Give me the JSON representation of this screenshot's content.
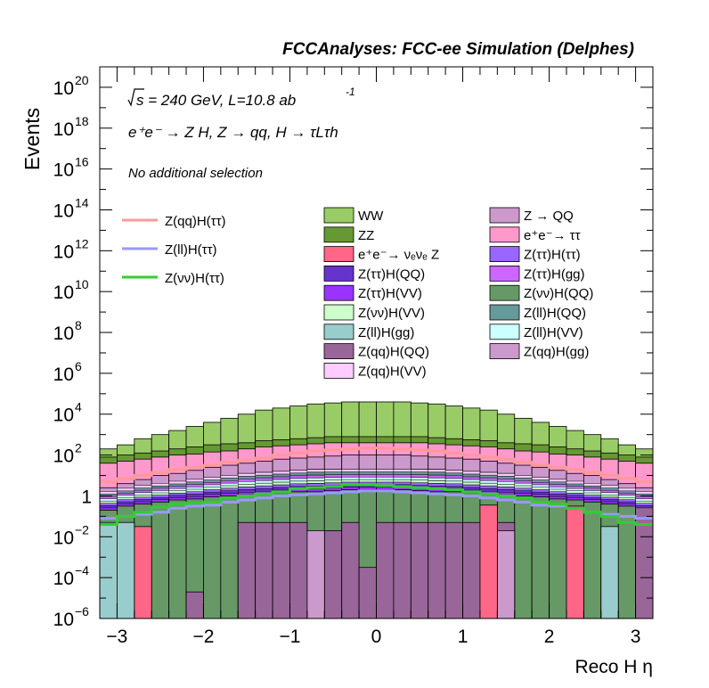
{
  "chart_data": {
    "type": "bar",
    "stacked": true,
    "histogram": true,
    "title": "FCCAnalyses: FCC-ee Simulation (Delphes)",
    "xlabel": "Reco H η",
    "ylabel": "Events",
    "xlim": [
      -3.2,
      3.2
    ],
    "ylim": [
      1e-06,
      1e+21
    ],
    "log_y": true,
    "legend_position": "top",
    "bins": 32,
    "x_ticks": [
      "−3",
      "−2",
      "−1",
      "0",
      "1",
      "2",
      "3"
    ],
    "y_ticks": [
      {
        "value": 1e-06,
        "base": "10",
        "exp": "−6"
      },
      {
        "value": 0.0001,
        "base": "10",
        "exp": "−4"
      },
      {
        "value": 0.01,
        "base": "10",
        "exp": "−2"
      },
      {
        "value": 1,
        "base": "1",
        "exp": ""
      },
      {
        "value": 100.0,
        "base": "10",
        "exp": "2"
      },
      {
        "value": 10000.0,
        "base": "10",
        "exp": "4"
      },
      {
        "value": 1000000.0,
        "base": "10",
        "exp": "6"
      },
      {
        "value": 100000000.0,
        "base": "10",
        "exp": "8"
      },
      {
        "value": 10000000000.0,
        "base": "10",
        "exp": "10"
      },
      {
        "value": 1000000000000.0,
        "base": "10",
        "exp": "12"
      },
      {
        "value": 100000000000000.0,
        "base": "10",
        "exp": "14"
      },
      {
        "value": 1e+16,
        "base": "10",
        "exp": "16"
      },
      {
        "value": 1e+18,
        "base": "10",
        "exp": "18"
      },
      {
        "value": 1e+20,
        "base": "10",
        "exp": "20"
      }
    ],
    "annotations": {
      "energy": "s = 240 GeV, L=10.8 ab",
      "energy_sup": "-1",
      "process": "e⁺e⁻ → Z H, Z → qq, H → τLτh",
      "selection": "No additional selection"
    },
    "stack_boundaries_log10": {
      "WW_top": [
        2.3,
        2.5,
        2.8,
        3.0,
        3.2,
        3.4,
        3.6,
        3.8,
        4.0,
        4.2,
        4.3,
        4.4,
        4.5,
        4.55,
        4.6,
        4.6,
        4.6,
        4.6,
        4.55,
        4.5,
        4.4,
        4.3,
        4.2,
        4.0,
        3.8,
        3.6,
        3.4,
        3.2,
        3.0,
        2.8,
        2.5,
        2.3
      ],
      "ZZ_top": [
        1.9,
        2.0,
        2.1,
        2.2,
        2.3,
        2.4,
        2.5,
        2.55,
        2.6,
        2.7,
        2.75,
        2.8,
        2.85,
        2.9,
        2.9,
        2.9,
        2.9,
        2.9,
        2.9,
        2.85,
        2.8,
        2.75,
        2.7,
        2.6,
        2.55,
        2.5,
        2.4,
        2.3,
        2.2,
        2.1,
        2.0,
        1.9
      ],
      "mid_top": [
        1.6,
        1.7,
        1.8,
        1.9,
        2.0,
        2.05,
        2.15,
        2.2,
        2.3,
        2.4,
        2.45,
        2.5,
        2.55,
        2.6,
        2.6,
        2.6,
        2.6,
        2.6,
        2.6,
        2.55,
        2.5,
        2.45,
        2.4,
        2.3,
        2.2,
        2.15,
        2.05,
        2.0,
        1.9,
        1.8,
        1.7,
        1.6
      ],
      "Zqq_gg_top": [
        0.4,
        0.6,
        0.8,
        1.0,
        1.1,
        1.25,
        1.4,
        1.5,
        1.6,
        1.7,
        1.8,
        1.85,
        1.9,
        1.95,
        2.0,
        2.0,
        2.0,
        2.0,
        1.95,
        1.9,
        1.85,
        1.8,
        1.7,
        1.6,
        1.5,
        1.4,
        1.25,
        1.1,
        1.0,
        0.8,
        0.6,
        0.4
      ],
      "dense_top": [
        0.2,
        0.35,
        0.5,
        0.6,
        0.7,
        0.8,
        0.9,
        1.0,
        1.1,
        1.15,
        1.2,
        1.25,
        1.3,
        1.3,
        1.3,
        1.3,
        1.3,
        1.3,
        1.3,
        1.3,
        1.25,
        1.2,
        1.15,
        1.1,
        1.0,
        0.9,
        0.8,
        0.7,
        0.6,
        0.5,
        0.35,
        0.2
      ],
      "Zvv_QQ_top": [
        -0.7,
        -0.5,
        -0.4,
        -0.3,
        -0.2,
        -0.15,
        -0.05,
        0.0,
        0.05,
        0.1,
        0.15,
        0.2,
        0.2,
        0.25,
        0.3,
        0.3,
        0.3,
        0.3,
        0.25,
        0.2,
        0.2,
        0.15,
        0.1,
        0.05,
        0.0,
        -0.05,
        -0.15,
        -0.2,
        -0.3,
        -0.4,
        -0.5,
        -0.7
      ],
      "Zqq_QQ_top": [
        -6.5,
        -6.5,
        -6.5,
        -6.5,
        -6.5,
        -4.7,
        -6.5,
        -6.5,
        -1.3,
        -1.3,
        -1.3,
        -1.3,
        -6.5,
        -1.7,
        -1.3,
        -3.5,
        -1.3,
        -1.3,
        -1.3,
        -1.3,
        -1.3,
        -1.3,
        -1.3,
        -1.3,
        -6.5,
        -6.5,
        -6.5,
        -6.5,
        -6.5,
        -4.7,
        -6.5,
        -0.3
      ],
      "Zqq_gg_bar": [
        -6.5,
        -6.5,
        -6.5,
        -6.5,
        -6.5,
        -6.5,
        -6.5,
        -6.5,
        -6.5,
        -6.5,
        -6.5,
        -6.5,
        -1.7,
        -6.5,
        -6.5,
        -6.5,
        -6.5,
        -6.5,
        -6.5,
        -6.5,
        -6.5,
        -6.5,
        -6.5,
        -1.7,
        -6.5,
        -6.5,
        -6.5,
        -6.5,
        -6.5,
        -6.5,
        -6.5,
        -6.5
      ],
      "nunuZ_top": [
        -6.5,
        -6.5,
        -1.5,
        -6.5,
        -6.5,
        -6.5,
        -6.5,
        -6.5,
        -6.5,
        -6.5,
        -6.5,
        -6.5,
        -6.5,
        -6.5,
        -6.5,
        -6.5,
        -6.5,
        -6.5,
        -6.5,
        -6.5,
        -6.5,
        -6.5,
        -0.45,
        -6.5,
        -6.5,
        -6.5,
        -6.5,
        -0.5,
        -6.5,
        -6.5,
        -6.5,
        -6.5
      ],
      "Zll_gg_top": [
        -1.3,
        -1.3,
        -6.5,
        -6.5,
        -6.5,
        -6.5,
        -6.5,
        -6.5,
        -6.5,
        -6.5,
        -6.5,
        -6.5,
        -6.5,
        -6.5,
        -6.5,
        -6.5,
        -6.5,
        -6.5,
        -6.5,
        -6.5,
        -6.5,
        -6.5,
        -6.5,
        -6.5,
        -6.5,
        -6.5,
        -6.5,
        -6.5,
        -6.5,
        -1.5,
        -6.5,
        -6.5
      ]
    },
    "lines_log10": {
      "Z(qq)H(ττ)": [
        0.7,
        0.85,
        1.0,
        1.15,
        1.3,
        1.4,
        1.5,
        1.65,
        1.75,
        1.85,
        2.0,
        2.1,
        2.2,
        2.25,
        2.3,
        2.35,
        2.35,
        2.3,
        2.25,
        2.2,
        2.1,
        2.0,
        1.9,
        1.8,
        1.65,
        1.5,
        1.4,
        1.3,
        1.15,
        1.0,
        0.85,
        0.7
      ],
      "Z(ll)H(ττ)": [
        -1.1,
        -1.0,
        -0.9,
        -0.8,
        -0.6,
        -0.5,
        -0.45,
        -0.3,
        -0.2,
        -0.1,
        0.0,
        0.05,
        0.1,
        0.15,
        0.2,
        0.25,
        0.25,
        0.2,
        0.15,
        0.1,
        0.05,
        0.0,
        -0.1,
        -0.2,
        -0.3,
        -0.45,
        -0.5,
        -0.6,
        -0.8,
        -0.9,
        -1.0,
        -1.1
      ],
      "Z(νν)H(ττ)": [
        -1.4,
        -1.0,
        -0.8,
        -0.55,
        -0.4,
        -0.35,
        -0.3,
        -0.1,
        0.0,
        0.1,
        0.2,
        0.35,
        0.4,
        0.45,
        0.55,
        0.55,
        0.5,
        0.45,
        0.4,
        0.35,
        0.3,
        0.2,
        0.1,
        0.0,
        -0.1,
        -0.3,
        -0.4,
        -0.6,
        -0.8,
        -1.0,
        -1.3,
        -1.4
      ]
    },
    "series": [
      {
        "name": "WW",
        "color": "#99cc66"
      },
      {
        "name": "ZZ",
        "color": "#669933"
      },
      {
        "name": "e⁺e⁻→ νₑνₑ Z",
        "color": "#ff6688"
      },
      {
        "name": "Z(ττ)H(QQ)",
        "color": "#6633cc"
      },
      {
        "name": "Z(ττ)H(VV)",
        "color": "#9933ff"
      },
      {
        "name": "Z(νν)H(VV)",
        "color": "#ccffcc"
      },
      {
        "name": "Z(ll)H(gg)",
        "color": "#99cccc"
      },
      {
        "name": "Z(qq)H(QQ)",
        "color": "#996699"
      },
      {
        "name": "Z(qq)H(VV)",
        "color": "#ffccff"
      },
      {
        "name": "Z → QQ",
        "color": "#cc99cc"
      },
      {
        "name": "e⁺e⁻→ ττ",
        "color": "#ff99cc"
      },
      {
        "name": "Z(ττ)H(ττ)",
        "color": "#9966ff"
      },
      {
        "name": "Z(ττ)H(gg)",
        "color": "#cc66ff"
      },
      {
        "name": "Z(νν)H(QQ)",
        "color": "#669966"
      },
      {
        "name": "Z(ll)H(QQ)",
        "color": "#669999"
      },
      {
        "name": "Z(ll)H(VV)",
        "color": "#ccffff"
      },
      {
        "name": "Z(qq)H(gg)",
        "color": "#cc99cc"
      }
    ],
    "line_series": [
      {
        "name": "Z(qq)H(ττ)",
        "color": "#ff9999"
      },
      {
        "name": "Z(ll)H(ττ)",
        "color": "#9999ff"
      },
      {
        "name": "Z(νν)H(ττ)",
        "color": "#33cc33"
      }
    ]
  }
}
